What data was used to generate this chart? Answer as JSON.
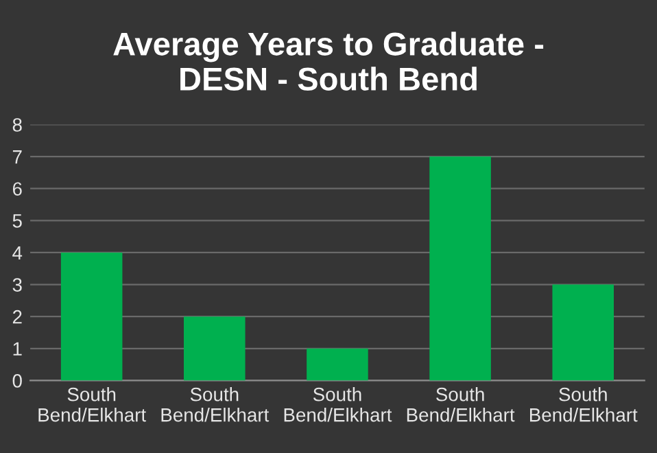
{
  "chart_data": {
    "type": "bar",
    "title": "Average Years to Graduate -\nDESN - South Bend",
    "categories": [
      "South\nBend/Elkhart",
      "South\nBend/Elkhart",
      "South\nBend/Elkhart",
      "South\nBend/Elkhart",
      "South\nBend/Elkhart"
    ],
    "values": [
      4,
      2,
      1,
      7,
      3
    ],
    "color": "#00b04f",
    "ylim": [
      0,
      8
    ],
    "yticks": [
      0,
      1,
      2,
      3,
      4,
      5,
      6,
      7,
      8
    ],
    "grid": "y",
    "legend": false
  }
}
